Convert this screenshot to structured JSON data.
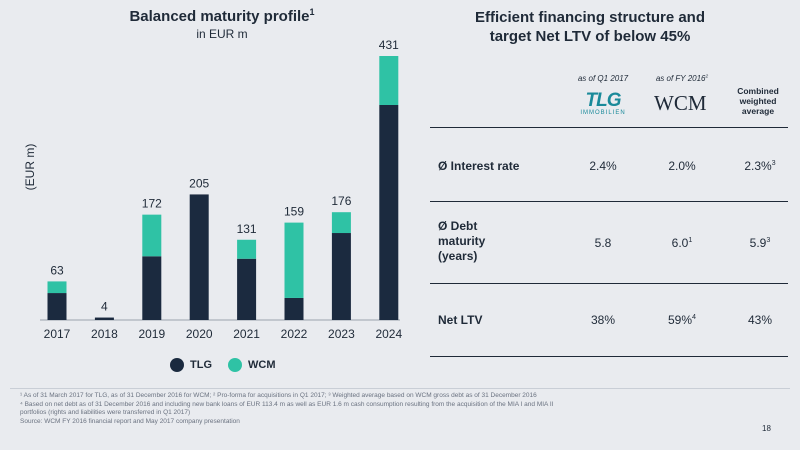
{
  "left": {
    "title": "Balanced maturity profile",
    "title_sup": "1",
    "subtitle": "in EUR m",
    "ylabel": "(EUR m)"
  },
  "chart_data": {
    "type": "bar",
    "stacked": true,
    "title": "Balanced maturity profile",
    "ylabel": "(EUR m)",
    "categories": [
      "2017",
      "2018",
      "2019",
      "2020",
      "2021",
      "2022",
      "2023",
      "2024"
    ],
    "series": [
      {
        "name": "TLG",
        "color": "#1b2a3f",
        "values": [
          44,
          4,
          104,
          205,
          100,
          36,
          142,
          351
        ]
      },
      {
        "name": "WCM",
        "color": "#2fc2a5",
        "values": [
          19,
          0,
          68,
          0,
          31,
          123,
          34,
          80
        ]
      }
    ],
    "totals": [
      "63",
      "4",
      "172",
      "205",
      "131",
      "159",
      "176",
      "431"
    ],
    "ylim": [
      0,
      431
    ]
  },
  "legend": [
    {
      "label": "TLG",
      "color": "#1b2a3f"
    },
    {
      "label": "WCM",
      "color": "#2fc2a5"
    }
  ],
  "right": {
    "title_line1": "Efficient financing structure and",
    "title_line2": "target Net LTV of below 45%",
    "col1_head": "as of Q1 2017",
    "col2_head": "as of FY 2016",
    "col2_head_sup": "2",
    "col1_logo": "TLG",
    "col1_logo_sub": "IMMOBILIEN",
    "col2_logo": "WCM",
    "col3_head_l1": "Combined",
    "col3_head_l2": "weighted",
    "col3_head_l3": "average",
    "rows": [
      {
        "label": "Ø Interest rate",
        "v1": "2.4%",
        "v2": "2.0%",
        "v2_sup": "",
        "v3": "2.3%",
        "v3_sup": "3"
      },
      {
        "label_l1": "Ø Debt",
        "label_l2": "maturity",
        "label_l3": "(years)",
        "v1": "5.8",
        "v2": "6.0",
        "v2_sup": "1",
        "v3": "5.9",
        "v3_sup": "3"
      },
      {
        "label": "Net LTV",
        "v1": "38%",
        "v2": "59%",
        "v2_sup": "4",
        "v3": "43%",
        "v3_sup": ""
      }
    ]
  },
  "footnotes": [
    "¹ As of 31 March 2017 for TLG, as of 31 December 2016 for WCM; ² Pro-forma for acquisitions in Q1 2017; ³ Weighted average based on WCM gross debt as of 31 December 2016",
    "⁴ Based on net debt as of 31 December 2016 and including new bank loans of EUR 113.4 m as well as EUR 1.6 m cash consumption resulting from the acquisition of the MIA I and MIA II",
    "portfolios (rights and liabilities were transferred in Q1 2017)",
    "Source: WCM FY 2016 financial report and May 2017 company presentation"
  ],
  "page_number": "18"
}
